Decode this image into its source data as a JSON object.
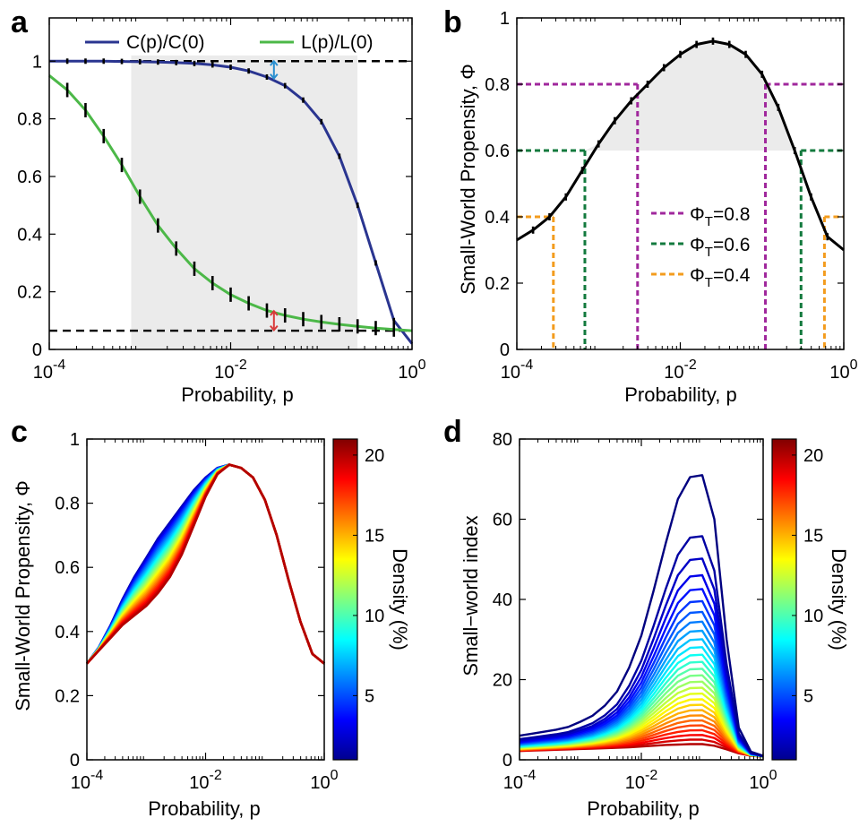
{
  "colors": {
    "ratio_C": "#2a3590",
    "ratio_L": "#4cb848",
    "phi": "#000000",
    "thr_08": "#a0279c",
    "thr_06": "#137a3e",
    "thr_04": "#f39c1e",
    "shade": "#ebebeb",
    "arrow_blue": "#2a8fd0",
    "arrow_red": "#d93a3a"
  },
  "chart_data": [
    {
      "panel": "a",
      "type": "line",
      "x_scale": "log",
      "xlim": [
        0.0001,
        1
      ],
      "ylim": [
        0,
        1.15
      ],
      "xlabel": "Probability, p",
      "ylabel": "",
      "x_ticks": [
        {
          "base": "10",
          "exp": "-4",
          "value": 0.0001
        },
        {
          "base": "10",
          "exp": "-2",
          "value": 0.01
        },
        {
          "base": "10",
          "exp": "0",
          "value": 1
        }
      ],
      "y_ticks": [
        "0",
        "0.2",
        "0.4",
        "0.6",
        "0.8",
        "1"
      ],
      "y_tick_values": [
        0,
        0.2,
        0.4,
        0.6,
        0.8,
        1
      ],
      "legend": [
        "C(p)/C(0)",
        "L(p)/L(0)"
      ],
      "legend_position": "top",
      "shaded_x": [
        0.0008,
        0.25
      ],
      "hlines": [
        1.0,
        0.065
      ],
      "series": [
        {
          "name": "C(p)/C(0)",
          "color_key": "ratio_C",
          "x": [
            0.0001,
            0.000158,
            0.000251,
            0.000398,
            0.000631,
            0.001,
            0.00158,
            0.00251,
            0.00398,
            0.00631,
            0.01,
            0.0158,
            0.0251,
            0.0398,
            0.0631,
            0.1,
            0.158,
            0.251,
            0.398,
            0.631,
            1
          ],
          "y": [
            1.0,
            1.0,
            1.0,
            1.0,
            0.999,
            0.998,
            0.997,
            0.995,
            0.992,
            0.987,
            0.979,
            0.966,
            0.945,
            0.915,
            0.865,
            0.79,
            0.67,
            0.5,
            0.3,
            0.1,
            0.02
          ]
        },
        {
          "name": "L(p)/L(0)",
          "color_key": "ratio_L",
          "x": [
            0.0001,
            0.000158,
            0.000251,
            0.000398,
            0.000631,
            0.001,
            0.00158,
            0.00251,
            0.00398,
            0.00631,
            0.01,
            0.0158,
            0.0251,
            0.0398,
            0.0631,
            0.1,
            0.158,
            0.251,
            0.398,
            0.631,
            1
          ],
          "y": [
            0.95,
            0.9,
            0.83,
            0.74,
            0.64,
            0.53,
            0.43,
            0.35,
            0.28,
            0.23,
            0.19,
            0.16,
            0.135,
            0.118,
            0.105,
            0.095,
            0.087,
            0.08,
            0.074,
            0.069,
            0.065
          ]
        }
      ]
    },
    {
      "panel": "b",
      "type": "line",
      "x_scale": "log",
      "xlim": [
        0.0001,
        1
      ],
      "ylim": [
        0,
        1
      ],
      "xlabel": "Probability, p",
      "ylabel": "Small-World Propensity, Φ",
      "x_ticks": [
        {
          "base": "10",
          "exp": "-4",
          "value": 0.0001
        },
        {
          "base": "10",
          "exp": "-2",
          "value": 0.01
        },
        {
          "base": "10",
          "exp": "0",
          "value": 1
        }
      ],
      "y_ticks": [
        "0",
        "0.2",
        "0.4",
        "0.6",
        "0.8",
        "1"
      ],
      "y_tick_values": [
        0,
        0.2,
        0.4,
        0.6,
        0.8,
        1
      ],
      "legend": [
        {
          "sym": "Φ",
          "sub": "T",
          "label": "=0.8",
          "color_key": "thr_08"
        },
        {
          "sym": "Φ",
          "sub": "T",
          "label": "=0.6",
          "color_key": "thr_06"
        },
        {
          "sym": "Φ",
          "sub": "T",
          "label": "=0.4",
          "color_key": "thr_04"
        }
      ],
      "legend_position": "center-right",
      "shade_above": 0.6,
      "thresholds": [
        {
          "value": 0.8,
          "color_key": "thr_08",
          "p_low": 0.003,
          "p_high": 0.11
        },
        {
          "value": 0.6,
          "color_key": "thr_06",
          "p_low": 0.00068,
          "p_high": 0.3
        },
        {
          "value": 0.4,
          "color_key": "thr_04",
          "p_low": 0.00028,
          "p_high": 0.58
        }
      ],
      "series": [
        {
          "color_key": "phi",
          "x": [
            0.0001,
            0.000158,
            0.000251,
            0.000398,
            0.000631,
            0.001,
            0.00158,
            0.00251,
            0.00398,
            0.00631,
            0.01,
            0.0158,
            0.0251,
            0.0398,
            0.0631,
            0.1,
            0.158,
            0.251,
            0.398,
            0.631,
            1
          ],
          "y": [
            0.33,
            0.36,
            0.4,
            0.46,
            0.54,
            0.62,
            0.69,
            0.75,
            0.8,
            0.85,
            0.89,
            0.92,
            0.93,
            0.92,
            0.89,
            0.83,
            0.73,
            0.6,
            0.46,
            0.34,
            0.3
          ]
        }
      ]
    },
    {
      "panel": "c",
      "type": "line",
      "x_scale": "log",
      "xlim": [
        0.0001,
        1
      ],
      "ylim": [
        0,
        1
      ],
      "xlabel": "Probability, p",
      "ylabel": "Small-World Propensity, Φ",
      "x_ticks": [
        {
          "base": "10",
          "exp": "-4",
          "value": 0.0001
        },
        {
          "base": "10",
          "exp": "-2",
          "value": 0.01
        },
        {
          "base": "10",
          "exp": "0",
          "value": 1
        }
      ],
      "y_ticks": [
        "0",
        "0.2",
        "0.4",
        "0.6",
        "0.8",
        "1"
      ],
      "y_tick_values": [
        0,
        0.2,
        0.4,
        0.6,
        0.8,
        1
      ],
      "colorbar": {
        "label": "Density (%)",
        "min": 1,
        "max": 21,
        "ticks": [
          "5",
          "10",
          "15",
          "20"
        ],
        "tick_values": [
          5,
          10,
          15,
          20
        ]
      },
      "x": [
        0.0001,
        0.000158,
        0.000251,
        0.000398,
        0.000631,
        0.001,
        0.00158,
        0.00251,
        0.00398,
        0.00631,
        0.01,
        0.0158,
        0.0251,
        0.0398,
        0.0631,
        0.1,
        0.158,
        0.251,
        0.398,
        0.631,
        1
      ],
      "series_low_density": {
        "density": 2,
        "y": [
          0.3,
          0.35,
          0.42,
          0.5,
          0.57,
          0.63,
          0.69,
          0.74,
          0.79,
          0.84,
          0.88,
          0.91,
          0.92,
          0.91,
          0.88,
          0.81,
          0.7,
          0.56,
          0.43,
          0.33,
          0.3
        ]
      },
      "series_high_density": {
        "density": 20,
        "y": [
          0.3,
          0.34,
          0.38,
          0.42,
          0.45,
          0.48,
          0.52,
          0.57,
          0.64,
          0.73,
          0.82,
          0.89,
          0.92,
          0.91,
          0.88,
          0.81,
          0.7,
          0.56,
          0.43,
          0.33,
          0.3
        ]
      },
      "n_series": 28
    },
    {
      "panel": "d",
      "type": "line",
      "x_scale": "log",
      "xlim": [
        0.0001,
        1
      ],
      "ylim": [
        0,
        80
      ],
      "xlabel": "Probability, p",
      "ylabel": "Small−world index",
      "x_ticks": [
        {
          "base": "10",
          "exp": "-4",
          "value": 0.0001
        },
        {
          "base": "10",
          "exp": "-2",
          "value": 0.01
        },
        {
          "base": "10",
          "exp": "0",
          "value": 1
        }
      ],
      "y_ticks": [
        "0",
        "20",
        "40",
        "60",
        "80"
      ],
      "y_tick_values": [
        0,
        20,
        40,
        60,
        80
      ],
      "colorbar": {
        "label": "Density (%)",
        "min": 1,
        "max": 21,
        "ticks": [
          "5",
          "10",
          "15",
          "20"
        ],
        "tick_values": [
          5,
          10,
          15,
          20
        ]
      },
      "x": [
        0.0001,
        0.000158,
        0.000251,
        0.000398,
        0.000631,
        0.001,
        0.00158,
        0.00251,
        0.00398,
        0.00631,
        0.01,
        0.0158,
        0.0251,
        0.0398,
        0.0631,
        0.1,
        0.158,
        0.251,
        0.398,
        0.631,
        1
      ],
      "series_low_density": {
        "density": 1,
        "y": [
          6,
          6.5,
          7,
          7.5,
          8.2,
          9.5,
          11,
          13.5,
          17,
          23,
          31,
          42,
          54,
          65,
          70.5,
          71,
          60,
          30,
          8,
          2,
          1
        ]
      },
      "series_high_density": {
        "density": 20,
        "y": [
          2.2,
          2.3,
          2.4,
          2.5,
          2.6,
          2.7,
          2.8,
          2.9,
          3.0,
          3.1,
          3.3,
          3.5,
          3.7,
          3.8,
          3.9,
          3.9,
          3.5,
          2.6,
          1.6,
          1.0,
          0.8
        ]
      },
      "n_series": 28
    }
  ],
  "panel_labels": [
    "a",
    "b",
    "c",
    "d"
  ]
}
